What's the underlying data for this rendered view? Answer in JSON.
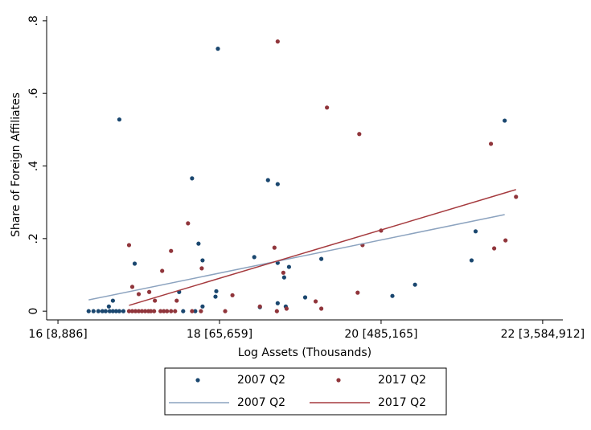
{
  "chart_data": {
    "type": "scatter",
    "x_label": "Log Assets (Thousands)",
    "y_label": "Share of Foreign Affiliates",
    "xlim": [
      15.86,
      22.25
    ],
    "ylim": [
      -0.024,
      0.813
    ],
    "xticks": [
      {
        "value": 16,
        "label": "16 [8,886]"
      },
      {
        "value": 18,
        "label": "18 [65,659]"
      },
      {
        "value": 20,
        "label": "20 [485,165]"
      },
      {
        "value": 22,
        "label": "22 [3,584,912]"
      }
    ],
    "yticks": [
      {
        "value": 0,
        "label": "0"
      },
      {
        "value": 0.2,
        "label": ".2"
      },
      {
        "value": 0.4,
        "label": ".4"
      },
      {
        "value": 0.6,
        "label": ".6"
      },
      {
        "value": 0.8,
        "label": ".8"
      }
    ],
    "series": [
      {
        "name": "2007 Q2",
        "type": "scatter",
        "color": "#1a476f",
        "x": [
          16.76,
          17.98,
          17.66,
          18.6,
          18.72,
          21.53,
          21.17,
          21.12,
          20.42,
          20.14,
          19.26,
          19.06,
          18.43,
          17.74,
          17.79,
          16.95,
          18.86,
          18.72,
          18.8,
          17.96,
          17.95,
          17.5,
          16.68,
          16.63,
          18.5,
          18.72,
          18.82,
          17.79,
          16.38,
          16.44,
          16.5,
          16.55,
          16.59,
          16.64,
          16.68,
          16.72,
          16.76,
          16.81,
          17.55,
          17.7
        ],
        "values": [
          0.528,
          0.723,
          0.366,
          0.361,
          0.35,
          0.525,
          0.22,
          0.14,
          0.073,
          0.042,
          0.144,
          0.038,
          0.149,
          0.186,
          0.14,
          0.131,
          0.122,
          0.133,
          0.093,
          0.055,
          0.04,
          0.053,
          0.029,
          0.013,
          0.011,
          0.022,
          0.013,
          0.013,
          0,
          0,
          0,
          0,
          0,
          0,
          0,
          0,
          0,
          0,
          0,
          0
        ]
      },
      {
        "name": "2017 Q2",
        "type": "scatter",
        "color": "#90353b",
        "x": [
          18.72,
          19.33,
          19.73,
          21.36,
          21.67,
          21.54,
          21.4,
          20.0,
          19.77,
          19.71,
          17.61,
          16.88,
          17.4,
          18.68,
          17.78,
          17.29,
          16.92,
          17.0,
          17.13,
          17.2,
          17.47,
          18.16,
          18.79,
          19.19,
          19.26,
          18.5,
          18.83,
          18.07,
          18.71,
          16.88,
          16.92,
          16.96,
          17.0,
          17.04,
          17.08,
          17.12,
          17.15,
          17.19,
          17.27,
          17.31,
          17.35,
          17.4,
          17.45,
          17.66,
          17.77
        ],
        "values": [
          0.743,
          0.561,
          0.488,
          0.461,
          0.315,
          0.195,
          0.173,
          0.222,
          0.182,
          0.051,
          0.242,
          0.182,
          0.166,
          0.175,
          0.118,
          0.111,
          0.067,
          0.047,
          0.053,
          0.029,
          0.029,
          0.044,
          0.106,
          0.027,
          0.007,
          0.013,
          0.007,
          0,
          0,
          0,
          0,
          0,
          0,
          0,
          0,
          0,
          0,
          0,
          0,
          0,
          0,
          0,
          0,
          0,
          0
        ]
      },
      {
        "name": "2007 Q2",
        "type": "line",
        "color": "#8ca3bf",
        "x": [
          16.38,
          21.53
        ],
        "values": [
          0.031,
          0.266
        ]
      },
      {
        "name": "2017 Q2",
        "type": "line",
        "color": "#a53a3e",
        "x": [
          16.88,
          21.67
        ],
        "values": [
          0.016,
          0.335
        ]
      }
    ]
  }
}
